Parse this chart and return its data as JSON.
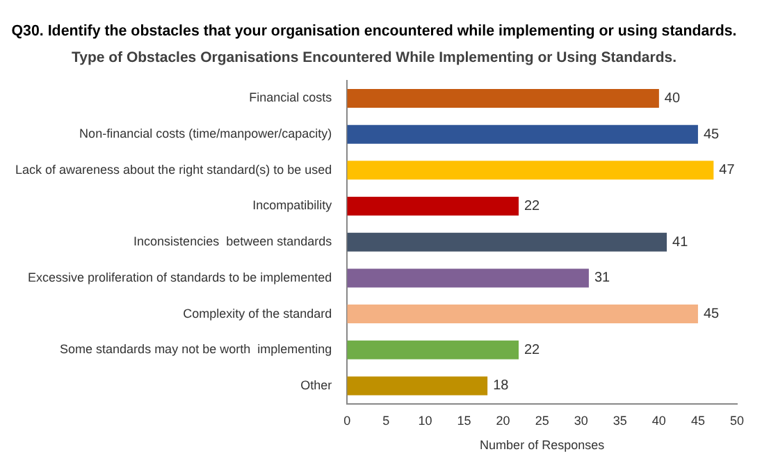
{
  "chart_data": {
    "type": "bar",
    "orientation": "horizontal",
    "title": "Q30. Identify the obstacles that your organisation encountered while implementing or using standards.",
    "subtitle": "Type of Obstacles Organisations Encountered While Implementing or Using Standards.",
    "xlabel": "Number of Responses",
    "categories": [
      "Financial costs",
      "Non-financial costs (time/manpower/capacity)",
      "Lack of awareness about the right standard(s) to be used",
      "Incompatibility",
      "Inconsistencies  between standards",
      "Excessive proliferation of standards to be implemented",
      "Complexity of the standard",
      "Some standards may not be worth  implementing",
      "Other"
    ],
    "values": [
      40,
      45,
      47,
      22,
      41,
      31,
      45,
      22,
      18
    ],
    "colors": [
      "#c55a11",
      "#2f5597",
      "#ffc000",
      "#c00000",
      "#44546a",
      "#7f6095",
      "#f4b183",
      "#70ad47",
      "#bf9000"
    ],
    "xlim": [
      0,
      50
    ],
    "xticks": [
      0,
      5,
      10,
      15,
      20,
      25,
      30,
      35,
      40,
      45,
      50
    ],
    "data_labels": true,
    "grid": false,
    "legend": false
  }
}
